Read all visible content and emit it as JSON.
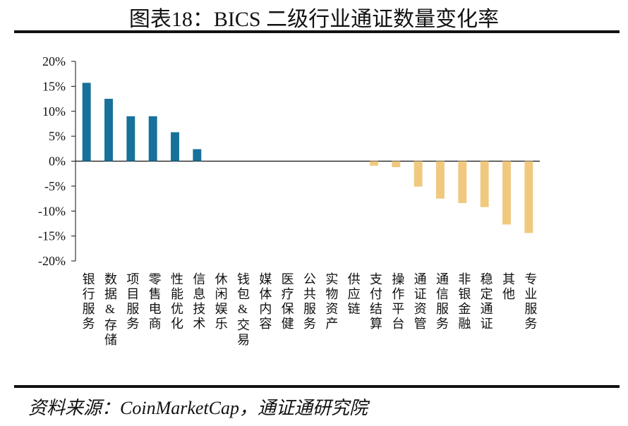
{
  "chart_data": {
    "type": "bar",
    "title": "图表18：BICS 二级行业通证数量变化率",
    "source": "资料来源：CoinMarketCap，通证通研究院",
    "categories": [
      "银行服务",
      "数据&存储",
      "项目服务",
      "零售电商",
      "性能优化",
      "信息技术",
      "休闲娱乐",
      "钱包&交易",
      "媒体内容",
      "医疗保健",
      "公共服务",
      "实物资产",
      "供应链",
      "支付结算",
      "操作平台",
      "通证资管",
      "通信服务",
      "非银金融",
      "稳定通证",
      "其他",
      "专业服务"
    ],
    "values": [
      15.7,
      12.5,
      9.0,
      9.0,
      5.8,
      2.4,
      0,
      0,
      0,
      0,
      0,
      0,
      0,
      -0.9,
      -1.2,
      -5.1,
      -7.5,
      -8.4,
      -9.2,
      -12.7,
      -14.4
    ],
    "colors": [
      "#17719a",
      "#17719a",
      "#17719a",
      "#17719a",
      "#17719a",
      "#17719a",
      "#17719a",
      "#17719a",
      "#17719a",
      "#17719a",
      "#17719a",
      "#17719a",
      "#17719a",
      "#f0c97f",
      "#f0c97f",
      "#f0c97f",
      "#f0c97f",
      "#f0c97f",
      "#f0c97f",
      "#f0c97f",
      "#f0c97f"
    ],
    "ylim": [
      -20,
      20
    ],
    "yticks": [
      {
        "value": 20,
        "label": "20%"
      },
      {
        "value": 15,
        "label": "15%"
      },
      {
        "value": 10,
        "label": "10%"
      },
      {
        "value": 5,
        "label": "5%"
      },
      {
        "value": 0,
        "label": "0%"
      },
      {
        "value": -5,
        "label": "-5%"
      },
      {
        "value": -10,
        "label": "-10%"
      },
      {
        "value": -15,
        "label": "-15%"
      },
      {
        "value": -20,
        "label": "-20%"
      }
    ],
    "grid": false
  }
}
